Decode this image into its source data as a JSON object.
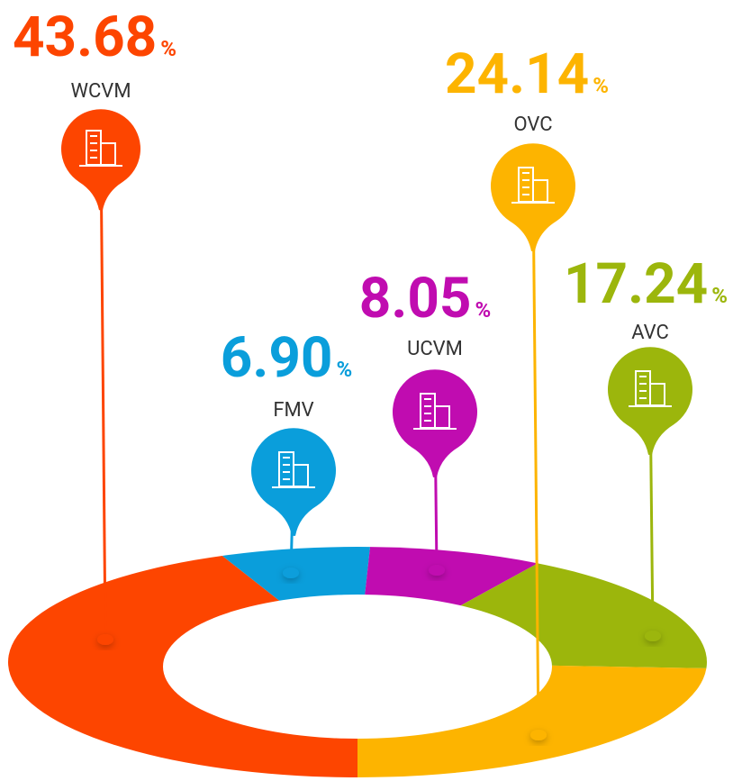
{
  "chart_data": {
    "type": "pie",
    "categories": [
      "WCVM",
      "FMV",
      "UCVM",
      "AVC",
      "OVC"
    ],
    "values": [
      43.68,
      6.9,
      8.05,
      17.24,
      24.14
    ],
    "value_labels": [
      "43.68",
      "6.90",
      "8.05",
      "17.24",
      "24.14"
    ],
    "unit": "%",
    "colors": [
      "#fd4500",
      "#0a9edb",
      "#c00cb0",
      "#9cb60c",
      "#fdb400"
    ]
  }
}
